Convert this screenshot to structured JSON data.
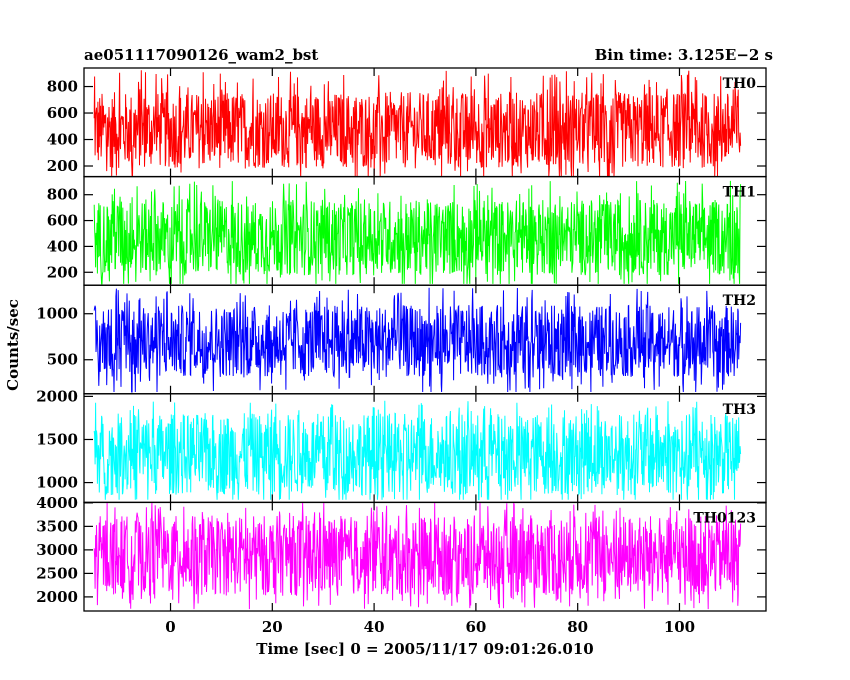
{
  "chart_data": {
    "type": "line",
    "title": "ae051117090126_wam2_bst",
    "subtitle": "Bin time: 3.125E−2 s",
    "xlabel": "Time [sec] 0 = 2005/11/17 09:01:26.010",
    "ylabel": "Counts/sec",
    "xlim": [
      -17,
      117
    ],
    "x_ticks": [
      0,
      20,
      40,
      60,
      80,
      100
    ],
    "x_tick_labels": [
      "0",
      "20",
      "40",
      "60",
      "80",
      "100"
    ],
    "data_x_range": [
      -15,
      112
    ],
    "bin_time_s": 0.03125,
    "panels": [
      {
        "name": "TH0",
        "color": "#ff0000",
        "ylim": [
          120,
          940
        ],
        "y_ticks": [
          200,
          400,
          600,
          800
        ],
        "mean": 470,
        "typical_low": 180,
        "typical_high": 790,
        "max": 940,
        "min": 120
      },
      {
        "name": "TH1",
        "color": "#00ff00",
        "ylim": [
          100,
          940
        ],
        "y_ticks": [
          200,
          400,
          600,
          800
        ],
        "mean": 470,
        "typical_low": 170,
        "typical_high": 790,
        "max": 920,
        "min": 110
      },
      {
        "name": "TH2",
        "color": "#0000ff",
        "ylim": [
          130,
          1310
        ],
        "y_ticks": [
          500,
          1000
        ],
        "mean": 700,
        "typical_low": 300,
        "typical_high": 1130,
        "max": 1300,
        "min": 150
      },
      {
        "name": "TH3",
        "color": "#00ffff",
        "ylim": [
          770,
          2030
        ],
        "y_ticks": [
          1000,
          1500,
          2000
        ],
        "mean": 1330,
        "typical_low": 880,
        "typical_high": 1880,
        "max": 2000,
        "min": 800
      },
      {
        "name": "TH0123",
        "color": "#ff00ff",
        "ylim": [
          1700,
          4010
        ],
        "y_ticks": [
          2000,
          2500,
          3000,
          3500,
          4000
        ],
        "mean": 2880,
        "typical_low": 1950,
        "typical_high": 3750,
        "max": 4000,
        "min": 1700
      }
    ]
  }
}
